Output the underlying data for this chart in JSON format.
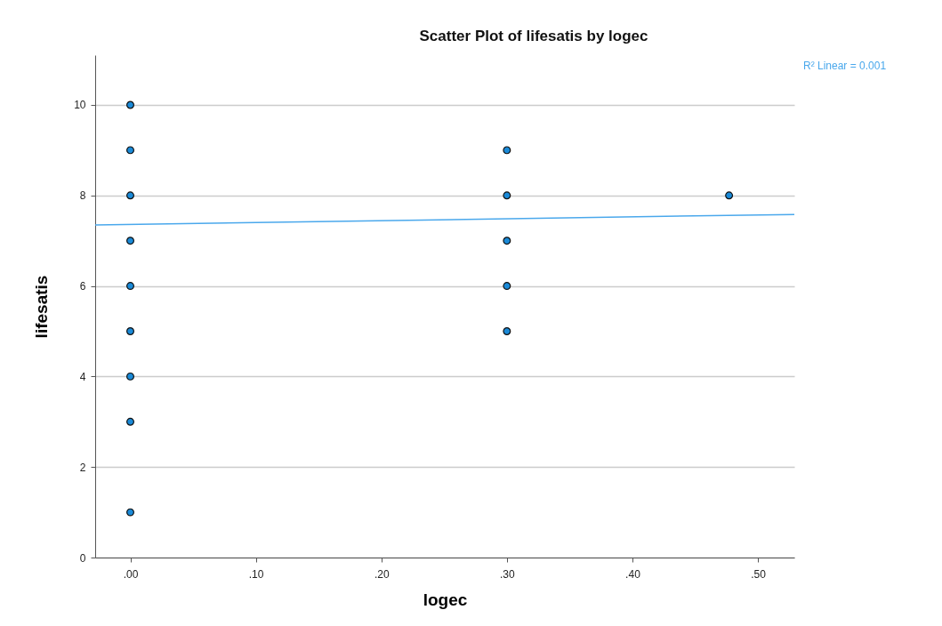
{
  "chart_data": {
    "type": "scatter",
    "title": "Scatter Plot of lifesatis by logec",
    "xlabel": "logec",
    "ylabel": "lifesatis",
    "xlim": [
      -0.028,
      0.529
    ],
    "ylim": [
      0,
      11.1
    ],
    "xticks": [
      {
        "value": 0,
        "label": ".00"
      },
      {
        "value": 0.1,
        "label": ".10"
      },
      {
        "value": 0.2,
        "label": ".20"
      },
      {
        "value": 0.3,
        "label": ".30"
      },
      {
        "value": 0.4,
        "label": ".40"
      },
      {
        "value": 0.5,
        "label": ".50"
      }
    ],
    "yticks": [
      0,
      2,
      4,
      6,
      8,
      10
    ],
    "grid": "y",
    "marker": "circle",
    "annotations": [
      "R² Linear = 0.001"
    ],
    "series": [
      {
        "color": "#1a8ad8",
        "x": [
          0,
          0,
          0,
          0,
          0,
          0,
          0,
          0,
          0,
          0.3,
          0.3,
          0.3,
          0.3,
          0.3,
          0.477
        ],
        "values": [
          1,
          3,
          4,
          5,
          6,
          7,
          8,
          9,
          10,
          5,
          6,
          7,
          8,
          9,
          8
        ]
      },
      {
        "type": "line",
        "marker": "none",
        "color": "#4aa8ec",
        "x": [
          -0.028,
          0.529
        ],
        "values": [
          7.35,
          7.58
        ]
      }
    ]
  }
}
